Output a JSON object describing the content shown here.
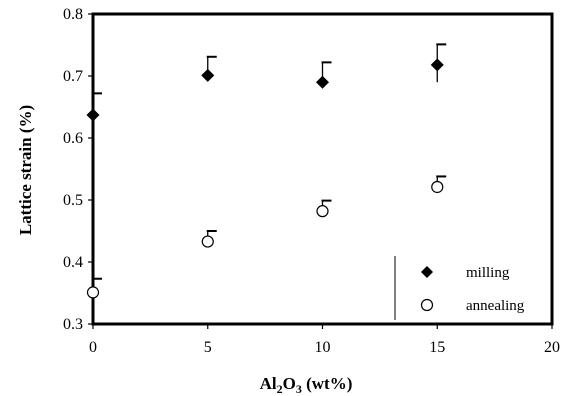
{
  "chart_data": {
    "type": "scatter",
    "title": "",
    "xlabel": "Al2O3 (wt%)",
    "xlabel_parts": {
      "base": "Al",
      "sub1": "2",
      "mid": "O",
      "sub2": "3",
      "rest": " (wt%)"
    },
    "ylabel": "Lattice strain (%)",
    "xlim": [
      0,
      20
    ],
    "ylim": [
      0.3,
      0.8
    ],
    "x_ticks": [
      "0",
      "5",
      "10",
      "15",
      "20"
    ],
    "y_ticks": [
      "0.3",
      "0.4",
      "0.5",
      "0.6",
      "0.7",
      "0.8"
    ],
    "grid": false,
    "legend_position": "bottom-right",
    "series": [
      {
        "name": "milling",
        "marker": "filled-diamond",
        "x": [
          0,
          5,
          10,
          15
        ],
        "y": [
          0.637,
          0.701,
          0.69,
          0.718
        ],
        "error_up": [
          0.035,
          0.03,
          0.032,
          0.033
        ],
        "error_down": [
          0.0,
          0.0,
          0.0,
          0.028
        ]
      },
      {
        "name": "annealing",
        "marker": "open-circle",
        "x": [
          0,
          5,
          10,
          15
        ],
        "y": [
          0.351,
          0.433,
          0.482,
          0.521
        ],
        "error_up": [
          0.022,
          0.017,
          0.017,
          0.017
        ],
        "error_down": [
          0.0,
          0.0,
          0.0,
          0.0
        ]
      }
    ]
  }
}
